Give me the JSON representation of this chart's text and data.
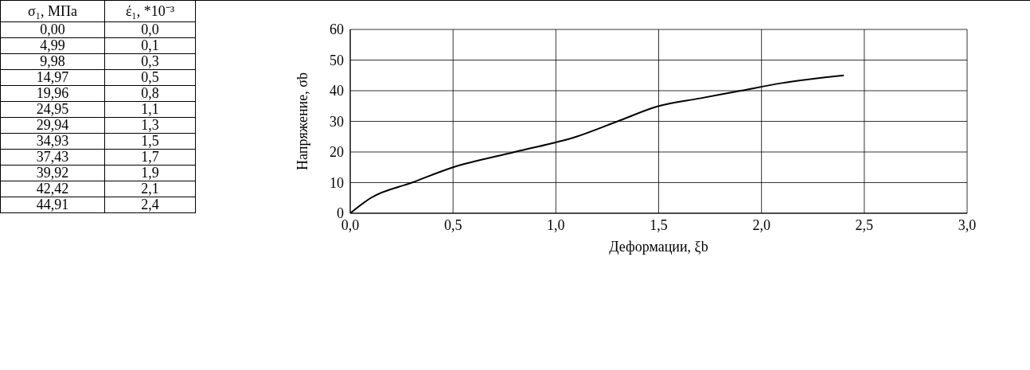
{
  "chart_data": [
    {
      "type": "other",
      "annotations": [
        "σ₁, МПа",
        "έ₁, *10⁻³",
        "0,00",
        "0,0",
        "4,99",
        "0,1",
        "9,98",
        "0,3",
        "14,97",
        "0,5",
        "19,96",
        "0,8",
        "24,95",
        "1,1",
        "29,94",
        "1,3",
        "34,93",
        "1,5",
        "37,43",
        "1,7",
        "39,92",
        "1,9",
        "42,42",
        "2,1",
        "44,91",
        "2,4"
      ]
    },
    {
      "type": "line",
      "xlabel": "Деформации, ξb",
      "ylabel": "Напряжение, σb",
      "x": [
        0.0,
        0.1,
        0.3,
        0.5,
        0.8,
        1.1,
        1.3,
        1.5,
        1.7,
        1.9,
        2.1,
        2.4
      ],
      "series": [
        {
          "color": "#000000",
          "values": [
            0,
            5,
            10,
            15,
            20,
            25,
            30,
            35,
            37.5,
            40,
            42.5,
            45
          ]
        }
      ],
      "xlim": [
        0,
        3
      ],
      "xticks": [
        {
          "value": 0,
          "label": "0,0"
        },
        {
          "value": 0.5,
          "label": "0,5"
        },
        {
          "value": 1,
          "label": "1,0"
        },
        {
          "value": 1.5,
          "label": "1,5"
        },
        {
          "value": 2,
          "label": "2,0"
        },
        {
          "value": 2.5,
          "label": "2,5"
        },
        {
          "value": 3,
          "label": "3,0"
        }
      ],
      "ylim": [
        0,
        60
      ],
      "yticks": [
        0,
        10,
        20,
        30,
        40,
        50,
        60
      ],
      "grid": true,
      "marker": "none",
      "line_style": "solid"
    }
  ]
}
